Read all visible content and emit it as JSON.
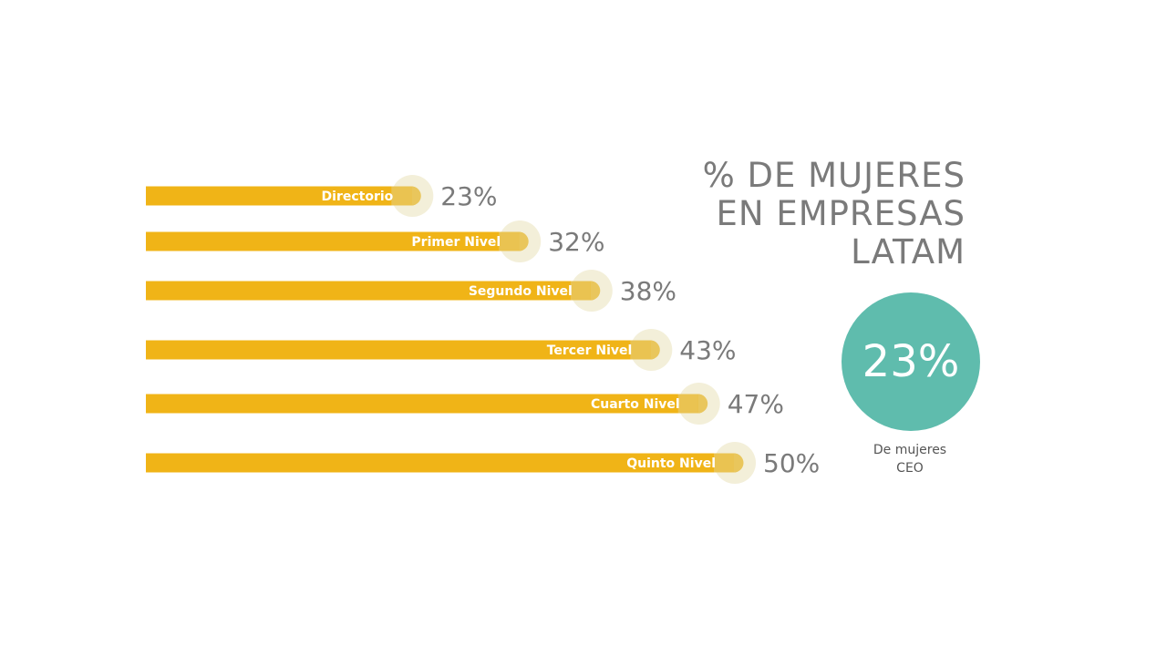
{
  "colors": {
    "bar": "#f0b417",
    "bar_end": "#e9c65c",
    "halo": "#f3efd9",
    "text_gray": "#7a7a7a",
    "circle": "#5fbcad"
  },
  "title": {
    "line1": "% DE MUJERES",
    "line2": "EN EMPRESAS",
    "line3": "LATAM"
  },
  "ceo": {
    "value": "23%",
    "caption_line1": "De mujeres",
    "caption_line2": "CEO"
  },
  "chart_data": {
    "type": "bar",
    "orientation": "horizontal",
    "categories": [
      "Directorio",
      "Primer Nivel",
      "Segundo Nivel",
      "Tercer Nivel",
      "Cuarto Nivel",
      "Quinto Nivel"
    ],
    "values": [
      23,
      32,
      38,
      43,
      47,
      50
    ],
    "value_labels": [
      "23%",
      "32%",
      "38%",
      "43%",
      "47%",
      "50%"
    ],
    "unit": "%",
    "title": "% DE MUJERES EN EMPRESAS LATAM",
    "xlim": [
      0,
      50
    ]
  }
}
